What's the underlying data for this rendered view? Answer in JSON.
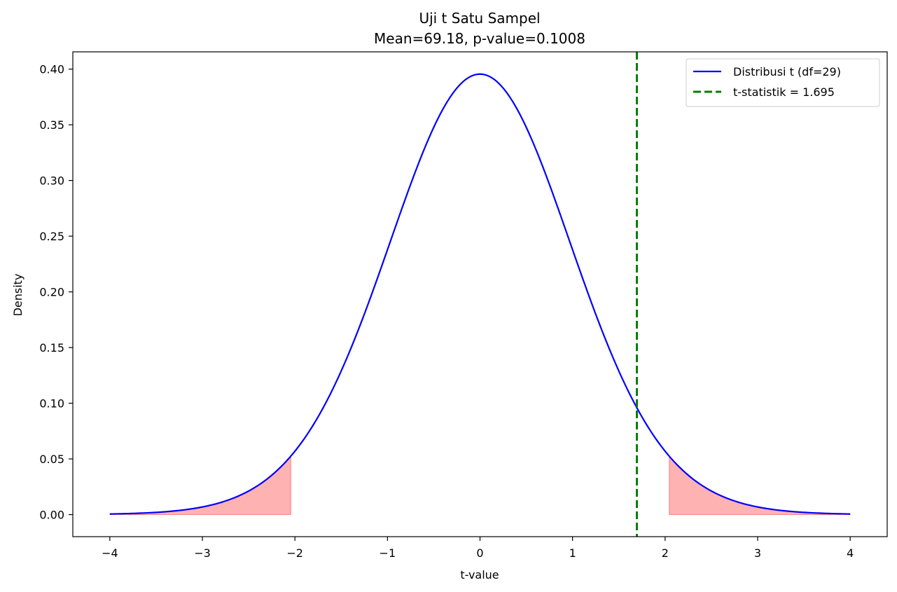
{
  "chart_data": {
    "type": "line",
    "title": "Uji t Satu Sampel",
    "subtitle": "Mean=69.18, p-value=0.1008",
    "xlabel": "t-value",
    "ylabel": "Density",
    "xlim": [
      -4.4,
      4.4
    ],
    "ylim": [
      -0.0198,
      0.4155
    ],
    "xticks": [
      -4,
      -3,
      -2,
      -1,
      0,
      1,
      2,
      3,
      4
    ],
    "xtick_labels": [
      "−4",
      "−3",
      "−2",
      "−1",
      "0",
      "1",
      "2",
      "3",
      "4"
    ],
    "yticks": [
      0.0,
      0.05,
      0.1,
      0.15,
      0.2,
      0.25,
      0.3,
      0.35,
      0.4
    ],
    "ytick_labels": [
      "0.00",
      "0.05",
      "0.10",
      "0.15",
      "0.20",
      "0.25",
      "0.30",
      "0.35",
      "0.40"
    ],
    "grid": false,
    "legend_position": "top-right",
    "series": [
      {
        "name": "Distribusi t (df=29)",
        "kind": "t-pdf",
        "df": 29,
        "x_range": [
          -4,
          4
        ],
        "color": "#0000ff"
      }
    ],
    "vline": {
      "name": "t-statistik = 1.695",
      "x": 1.695,
      "color": "#008000",
      "style": "dashed"
    },
    "shaded_regions": [
      {
        "x_from": -4,
        "x_to": -2.045,
        "color": "#ff0000",
        "alpha": 0.3
      },
      {
        "x_from": 2.045,
        "x_to": 4,
        "color": "#ff0000",
        "alpha": 0.3
      }
    ]
  }
}
